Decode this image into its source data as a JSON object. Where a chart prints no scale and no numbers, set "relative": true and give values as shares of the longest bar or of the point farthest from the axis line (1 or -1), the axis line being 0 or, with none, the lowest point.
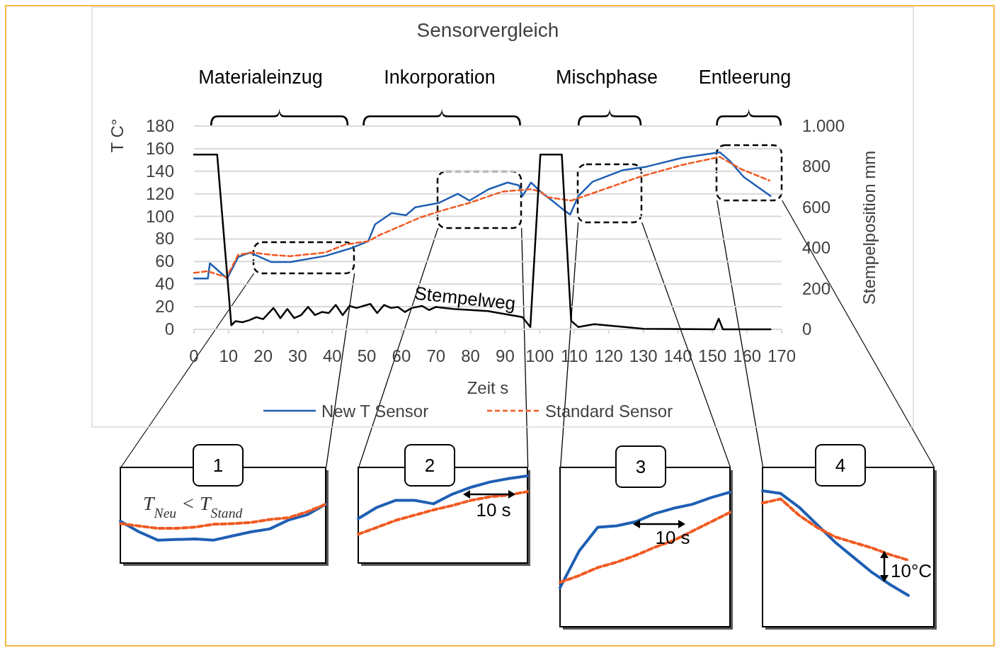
{
  "chart_data": [
    {
      "type": "line",
      "title": "Sensorvergleich",
      "xlabel": "Zeit s",
      "ylabel": "T C°",
      "y2label": "Stempelposition mm",
      "xlim": [
        0,
        170
      ],
      "xticks": [
        0,
        10,
        20,
        30,
        40,
        50,
        60,
        70,
        80,
        90,
        100,
        110,
        120,
        130,
        140,
        150,
        160,
        170
      ],
      "ylim": [
        0,
        180
      ],
      "yticks": [
        0,
        20,
        40,
        60,
        80,
        100,
        120,
        140,
        160,
        180
      ],
      "y2lim": [
        0,
        1000
      ],
      "y2ticks": [
        0,
        200,
        400,
        600,
        800,
        {
          "value": 1000,
          "label": "1.000"
        }
      ],
      "grid": "y",
      "legend": "bottom",
      "marker": "none",
      "series": [
        {
          "name": "New T Sensor",
          "color": "#1f5fb4",
          "line_style": "solid",
          "x": [
            0,
            4,
            4.6,
            9.6,
            12.8,
            16.2,
            22.3,
            27.9,
            38,
            45.6,
            50.4,
            52.4,
            57.2,
            61.3,
            64,
            70.9,
            76.3,
            79.7,
            85.2,
            90.7,
            94,
            95,
            97.5,
            100.2,
            103.6,
            107,
            108.8,
            111.2,
            115.3,
            124.1,
            130.9,
            141.1,
            152.1,
            154.9,
            159,
            166.8
          ],
          "values": [
            45,
            45,
            58.5,
            45,
            64,
            68,
            59.6,
            59.6,
            65,
            72,
            78,
            93,
            103,
            101,
            108,
            112,
            120,
            114,
            124,
            130,
            127.5,
            118,
            130,
            122,
            114,
            105.6,
            101.6,
            118,
            130.7,
            141,
            144,
            151.8,
            156.8,
            149.5,
            135,
            118
          ]
        },
        {
          "name": "Standard Sensor",
          "color": "#f05a22",
          "line_style": "dashed",
          "x": [
            0,
            3.9,
            9.4,
            12.8,
            16.9,
            22.3,
            27.9,
            38,
            43.6,
            50.4,
            53.8,
            65.4,
            72.2,
            79.7,
            89.3,
            97.5,
            100.2,
            102.3,
            109.1,
            113.9,
            128.9,
            141.1,
            152.1,
            158.2,
            166.5
          ],
          "values": [
            50,
            51.5,
            46,
            66,
            68,
            66,
            64.8,
            68,
            75,
            78,
            83.6,
            99,
            105.6,
            112,
            122,
            124,
            122,
            117,
            114,
            119,
            135,
            145.5,
            152.7,
            142,
            131.7
          ]
        },
        {
          "name": "Stempelweg",
          "color": "#000000",
          "line_style": "solid",
          "axis": "y2",
          "x": [
            0,
            6.7,
            10.8,
            12,
            14,
            16,
            18,
            20,
            23,
            25,
            27,
            29,
            31,
            33,
            35,
            37,
            39,
            41,
            43,
            45,
            47,
            49,
            51,
            53,
            55,
            57,
            59,
            61,
            63,
            66,
            68,
            70,
            75,
            80,
            85,
            90,
            95,
            97.3,
            100.2,
            106.4,
            109.1,
            111.2,
            115.8,
            124,
            130,
            150.5,
            151.8,
            153,
            166.8
          ],
          "values": [
            860,
            860,
            20,
            40,
            35,
            45,
            60,
            50,
            105,
            55,
            100,
            55,
            70,
            110,
            70,
            85,
            80,
            120,
            70,
            115,
            105,
            115,
            125,
            80,
            120,
            105,
            110,
            85,
            105,
            115,
            95,
            110,
            100,
            95,
            90,
            75,
            60,
            11,
            860,
            860,
            42,
            11,
            25,
            12,
            3,
            0,
            52,
            0,
            0
          ]
        }
      ],
      "annotations": [
        "Materialeinzug",
        "Inkorporation",
        "Mischphase",
        "Entleerung"
      ]
    },
    {
      "type": "line",
      "relative": true,
      "categories": [
        null,
        null,
        null,
        null,
        null,
        null,
        null,
        null,
        null,
        null,
        null,
        null
      ],
      "series": [
        {
          "color": "#1f5fb4",
          "line_style": "solid",
          "values": [
            0.71,
            0.53,
            0.39,
            0.4,
            0.41,
            0.39,
            0.46,
            0.53,
            0.58,
            0.73,
            0.82,
            1
          ]
        },
        {
          "color": "#f05a22",
          "line_style": "dashed",
          "values": [
            0.67,
            0.63,
            0.59,
            0.59,
            0.61,
            0.66,
            0.67,
            0.69,
            0.74,
            0.77,
            0.87,
            1
          ]
        }
      ],
      "annotations": [
        "1",
        "T$_{Neu}$ < T$_{Stand}$"
      ]
    },
    {
      "type": "line",
      "relative": true,
      "categories": [
        null,
        null,
        null,
        null,
        null,
        null,
        null,
        null,
        null,
        null
      ],
      "series": [
        {
          "color": "#1f5fb4",
          "line_style": "solid",
          "values": [
            0.51,
            0.64,
            0.72,
            0.72,
            0.68,
            0.79,
            0.87,
            0.93,
            0.97,
            1
          ]
        },
        {
          "color": "#f05a22",
          "line_style": "dashed",
          "values": [
            0.33,
            0.41,
            0.49,
            0.55,
            0.61,
            0.66,
            0.72,
            0.76,
            0.78,
            0.82
          ]
        }
      ],
      "annotations": [
        "2",
        "10 s"
      ]
    },
    {
      "type": "line",
      "relative": true,
      "categories": [
        null,
        null,
        null,
        null,
        null,
        null,
        null,
        null,
        null,
        null
      ],
      "series": [
        {
          "color": "#1f5fb4",
          "line_style": "solid",
          "values": [
            0.29,
            0.56,
            0.74,
            0.75,
            0.78,
            0.84,
            0.88,
            0.91,
            0.96,
            1
          ]
        },
        {
          "color": "#f05a22",
          "line_style": "dashed",
          "values": [
            0.33,
            0.38,
            0.44,
            0.48,
            0.53,
            0.59,
            0.64,
            0.71,
            0.78,
            0.85
          ]
        }
      ],
      "annotations": [
        "3",
        "10 s"
      ]
    },
    {
      "type": "line",
      "relative": true,
      "categories": [
        null,
        null,
        null,
        null,
        null,
        null,
        null,
        null,
        null
      ],
      "series": [
        {
          "color": "#1f5fb4",
          "line_style": "solid",
          "values": [
            1,
            0.98,
            0.88,
            0.75,
            0.62,
            0.51,
            0.4,
            0.31,
            0.23
          ]
        },
        {
          "color": "#f05a22",
          "line_style": "dashed",
          "values": [
            0.91,
            0.94,
            0.82,
            0.73,
            0.66,
            0.62,
            0.58,
            0.53,
            0.49
          ]
        }
      ],
      "annotations": [
        "4",
        "10°C"
      ]
    }
  ]
}
